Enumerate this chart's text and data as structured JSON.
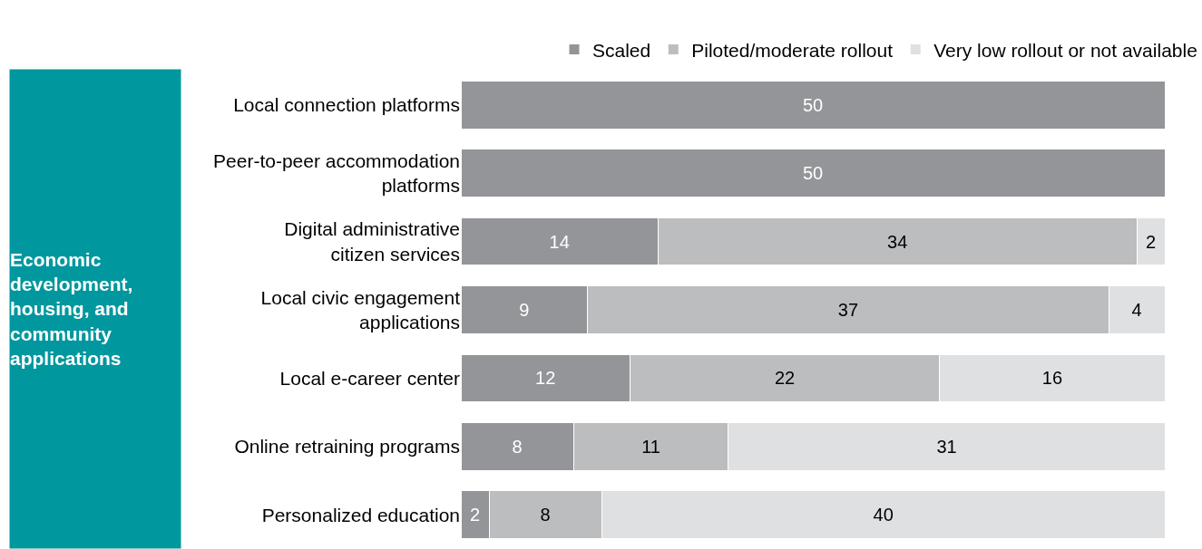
{
  "chart_data": {
    "type": "bar",
    "orientation": "horizontal",
    "stacked": true,
    "data_labels": true,
    "grid": false,
    "legend": "top right",
    "tick_labels": "y",
    "categories": [
      "Local connection platforms",
      "Peer-to-peer accommodation platforms",
      "Digital administrative citizen services",
      "Local civic engagement applications",
      "Local e-career center",
      "Online retraining programs",
      "Personalized education"
    ],
    "series": [
      {
        "name": "Scaled",
        "color": "#939598",
        "values": [
          50,
          50,
          14,
          9,
          12,
          8,
          2
        ]
      },
      {
        "name": "Piloted/moderate rollout",
        "color": "#bcbdbf",
        "values": [
          null,
          null,
          34,
          37,
          22,
          11,
          8
        ]
      },
      {
        "name": "Very low rollout or not available",
        "color": "#dfe0e1",
        "values": [
          null,
          null,
          2,
          4,
          16,
          31,
          40
        ]
      }
    ],
    "annotations": [
      "Economic development, housing, and community applications"
    ]
  }
}
